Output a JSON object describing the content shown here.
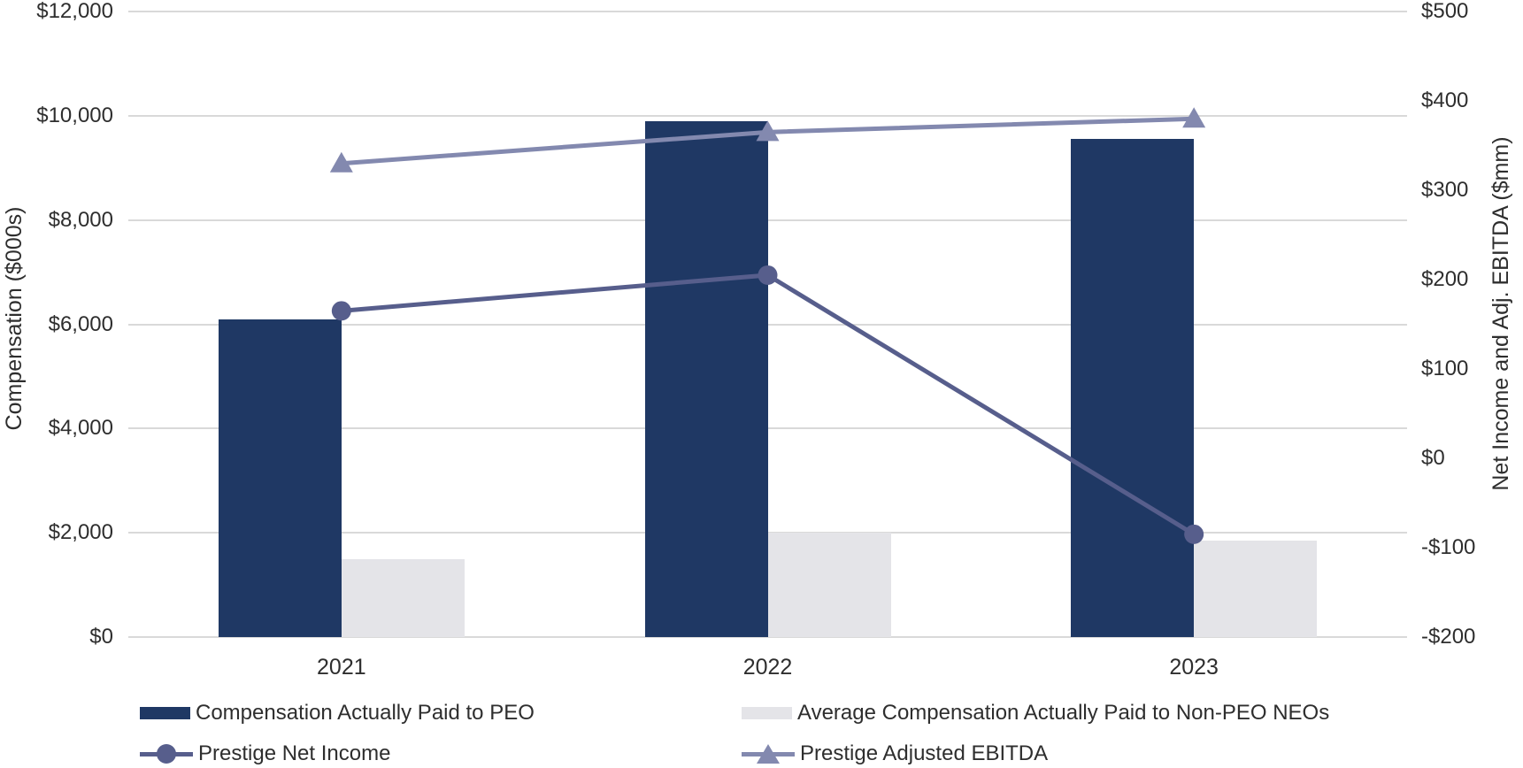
{
  "chart_data": {
    "type": "combo-bar-line",
    "categories": [
      "2021",
      "2022",
      "2023"
    ],
    "series": [
      {
        "key": "peo-bar",
        "name": "Compensation Actually Paid to PEO",
        "type": "bar",
        "axis": "left",
        "marker": "rect",
        "color": "#1F3864",
        "values": [
          6100,
          9900,
          9550
        ]
      },
      {
        "key": "neo-bar",
        "name": "Average Compensation Actually Paid to Non-PEO NEOs",
        "type": "bar",
        "axis": "left",
        "marker": "rect",
        "color": "#E4E4E8",
        "values": [
          1500,
          2000,
          1850
        ]
      },
      {
        "key": "net-income",
        "name": "Prestige Net Income",
        "type": "line",
        "axis": "right",
        "marker": "circle",
        "color": "#575E8C",
        "values": [
          165,
          205,
          -85
        ]
      },
      {
        "key": "adj-ebitda",
        "name": "Prestige Adjusted EBITDA",
        "type": "line",
        "axis": "right",
        "marker": "triangle",
        "color": "#8389AF",
        "values": [
          330,
          365,
          380
        ]
      }
    ],
    "left_axis": {
      "label": "Compensation ($000s)",
      "min": 0,
      "max": 12000,
      "step": 2000,
      "ticks": [
        "$0",
        "$2,000",
        "$4,000",
        "$6,000",
        "$8,000",
        "$10,000",
        "$12,000"
      ]
    },
    "right_axis": {
      "label": "Net Income and Adj. EBITDA ($mm)",
      "min": -200,
      "max": 500,
      "step": 100,
      "ticks": [
        "-$200",
        "-$100",
        "$0",
        "$100",
        "$200",
        "$300",
        "$400",
        "$500"
      ]
    },
    "grid": true,
    "legend_position": "bottom",
    "colors": {
      "gridline": "#D9D9D9",
      "text": "#2E2E2E",
      "background": "#FFFFFF"
    }
  }
}
